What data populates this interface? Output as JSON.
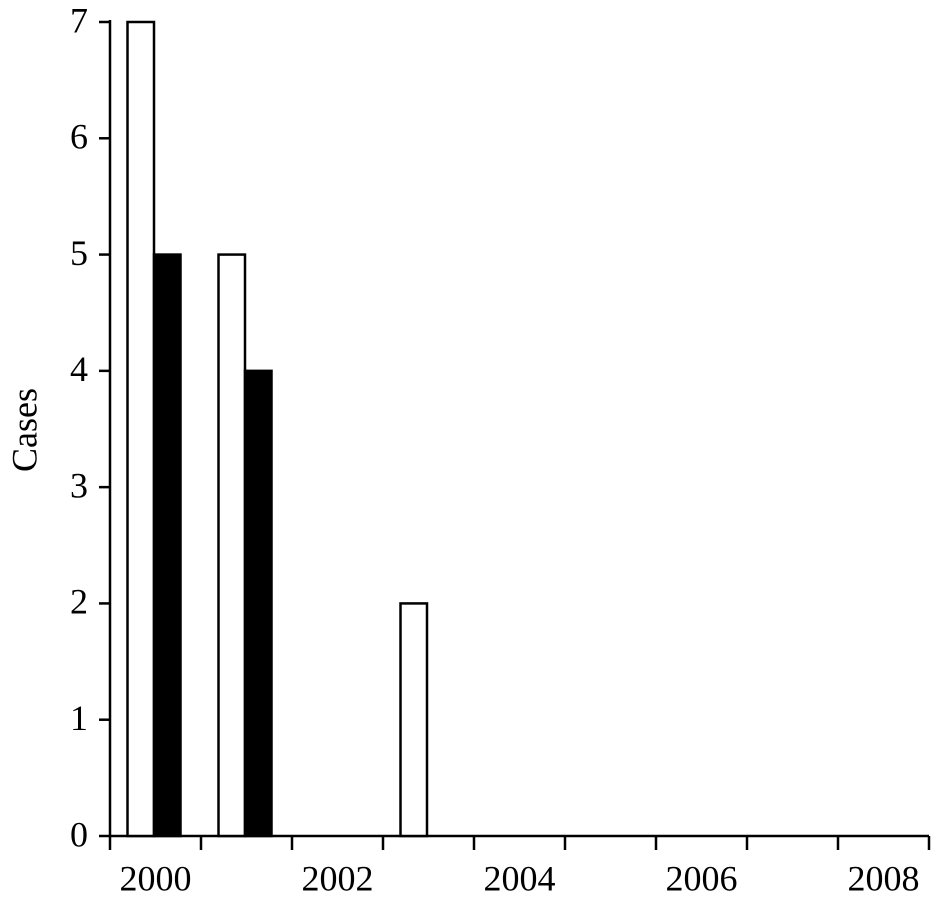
{
  "chart_data": {
    "type": "bar",
    "y_label": "Cases",
    "categories": [
      "2000",
      null,
      "2002",
      null,
      "2004",
      null,
      "2006",
      null,
      "2008"
    ],
    "series": [
      {
        "color": "#ffffff",
        "values": [
          7,
          5,
          0,
          2,
          0,
          0,
          0,
          0,
          0
        ]
      },
      {
        "color": "#000000",
        "values": [
          5,
          4,
          0,
          0,
          0,
          0,
          0,
          0,
          0
        ]
      }
    ],
    "ylim": [
      0,
      7
    ],
    "yticks": [
      0,
      1,
      2,
      3,
      4,
      5,
      6,
      7
    ],
    "grid": false
  }
}
